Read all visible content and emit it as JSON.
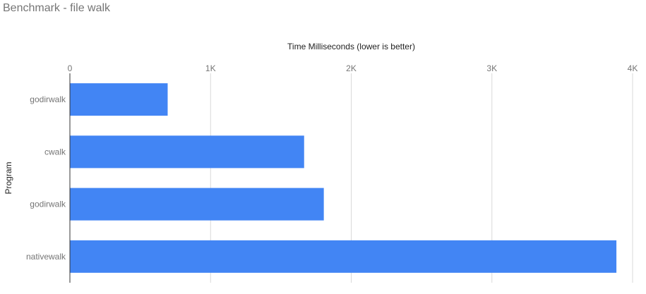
{
  "chart_data": {
    "type": "bar",
    "orientation": "horizontal",
    "title": "Benchmark - file walk",
    "xlabel": "Time Milliseconds (lower is better)",
    "ylabel": "Program",
    "categories": [
      "godirwalk",
      "cwalk",
      "godirwalk",
      "nativewalk"
    ],
    "values": [
      695,
      1665,
      1805,
      3885
    ],
    "xlim": [
      0,
      4000
    ],
    "x_ticks": [
      0,
      1000,
      2000,
      3000,
      4000
    ],
    "x_tick_labels": [
      "0",
      "1K",
      "2K",
      "3K",
      "4K"
    ],
    "x_axis_position": "top",
    "grid": true,
    "legend": "none",
    "bar_color": "#4285f4"
  }
}
